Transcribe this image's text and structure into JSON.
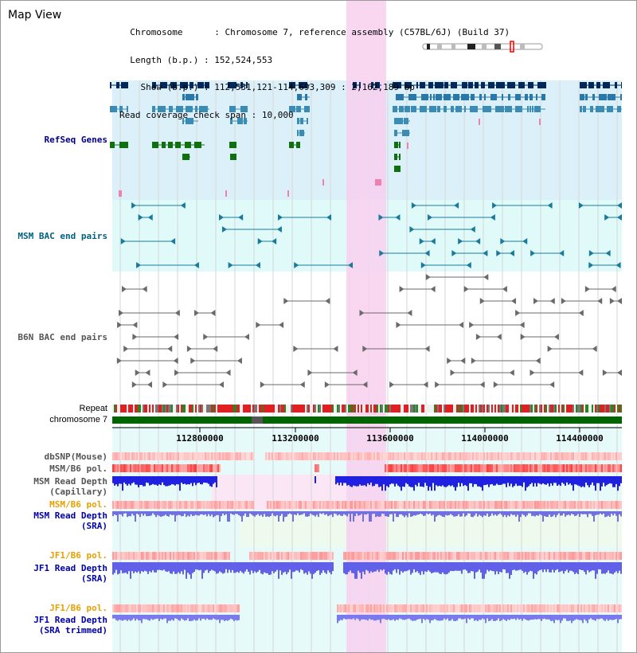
{
  "title": "Map View",
  "info": {
    "chromosome_label": "Chromosome",
    "chromosome_value": "Chromosome 7, reference assembly (C57BL/6J) (Build 37)",
    "length_label": "Length (b.p.)",
    "length_value": "152,524,553",
    "show_label": "Show (b.p.)",
    "show_value": "112,531,121-114,693,309 : 2,162,189 bp",
    "coverage_label": "Read coverage check span",
    "coverage_value": "10,000"
  },
  "tracks": {
    "refseq": "RefSeq Genes",
    "msm_bac": "MSM BAC end pairs",
    "b6n_bac": "B6N BAC end pairs",
    "repeat": "Repeat",
    "chromosome": "chromosome 7",
    "dbsnp": "dbSNP(Mouse)",
    "msm_b6_pol_1": "MSM/B6 pol.",
    "msm_depth_cap_1": "MSM Read Depth",
    "msm_depth_cap_2": "(Capillary)",
    "msm_b6_pol_2": "MSM/B6 pol.",
    "msm_depth_sra_1": "MSM Read Depth",
    "msm_depth_sra_2": "(SRA)",
    "jf1_b6_pol_1": "JF1/B6 pol.",
    "jf1_depth_sra_1": "JF1 Read Depth",
    "jf1_depth_sra_2": "(SRA)",
    "jf1_b6_pol_2": "JF1/B6 pol.",
    "jf1_depth_trim_1": "JF1 Read Depth",
    "jf1_depth_trim_2": "(SRA trimmed)"
  },
  "axis": {
    "ticks": [
      "112800000",
      "113200000",
      "113600000",
      "114000000",
      "114400000"
    ]
  },
  "colors": {
    "refseq_label": "#00008b",
    "msm_label": "#006080",
    "b6n_label": "#555555",
    "orange_label": "#e6a000",
    "blue_label": "#0000aa",
    "refseq_bg": "#dcf0fa",
    "msm_bg": "#e0fafa",
    "highlight": "#f8d0ee"
  }
}
